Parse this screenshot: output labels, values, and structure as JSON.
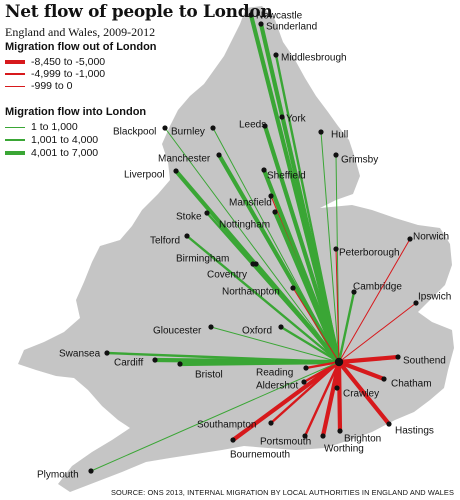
{
  "title": "Net flow of people to London",
  "subtitle": "England and Wales, 2009-2012",
  "legend": {
    "out_heading": "Migration flow out of London",
    "out_items": [
      {
        "label": "-8,450 to -5,000",
        "color": "#d7191c",
        "level": 3
      },
      {
        "label": "-4,999 to -1,000",
        "color": "#d7191c",
        "level": 2
      },
      {
        "label": "-999 to 0",
        "color": "#d7191c",
        "level": 1
      }
    ],
    "in_heading": "Migration flow into London",
    "in_items": [
      {
        "label": "1 to 1,000",
        "color": "#3aa635",
        "level": 1
      },
      {
        "label": "1,001 to 4,000",
        "color": "#3aa635",
        "level": 2
      },
      {
        "label": "4,001 to 7,000",
        "color": "#3aa635",
        "level": 3
      }
    ]
  },
  "source": "SOURCE: ONS 2013, INTERNAL MIGRATION BY LOCAL AUTHORITIES IN ENGLAND AND WALES",
  "colors": {
    "land": "#c5c5c5",
    "outflow": "#d7191c",
    "inflow": "#3aa635",
    "city_dot": "#111111"
  },
  "hub": "London",
  "flows": [
    {
      "city": "Newcastle",
      "direction": "in",
      "level": 3
    },
    {
      "city": "Sunderland",
      "direction": "in",
      "level": 3
    },
    {
      "city": "Middlesbrough",
      "direction": "in",
      "level": 2
    },
    {
      "city": "York",
      "direction": "in",
      "level": 2
    },
    {
      "city": "Leeds",
      "direction": "in",
      "level": 3
    },
    {
      "city": "Hull",
      "direction": "in",
      "level": 1
    },
    {
      "city": "Blackpool",
      "direction": "in",
      "level": 1
    },
    {
      "city": "Burnley",
      "direction": "in",
      "level": 1
    },
    {
      "city": "Grimsby",
      "direction": "in",
      "level": 1
    },
    {
      "city": "Manchester",
      "direction": "in",
      "level": 3
    },
    {
      "city": "Sheffield",
      "direction": "in",
      "level": 3
    },
    {
      "city": "Liverpool",
      "direction": "in",
      "level": 3
    },
    {
      "city": "Mansfield",
      "direction": "out",
      "level": 1
    },
    {
      "city": "Stoke",
      "direction": "in",
      "level": 2
    },
    {
      "city": "Nottingham",
      "direction": "in",
      "level": 3
    },
    {
      "city": "Telford",
      "direction": "in",
      "level": 2
    },
    {
      "city": "Peterborough",
      "direction": "out",
      "level": 1
    },
    {
      "city": "Norwich",
      "direction": "out",
      "level": 1
    },
    {
      "city": "Birmingham",
      "direction": "in",
      "level": 3
    },
    {
      "city": "Coventry",
      "direction": "in",
      "level": 2
    },
    {
      "city": "Cambridge",
      "direction": "in",
      "level": 2
    },
    {
      "city": "Northampton",
      "direction": "out",
      "level": 1
    },
    {
      "city": "Ipswich",
      "direction": "out",
      "level": 1
    },
    {
      "city": "Gloucester",
      "direction": "in",
      "level": 1
    },
    {
      "city": "Oxford",
      "direction": "in",
      "level": 2
    },
    {
      "city": "Swansea",
      "direction": "in",
      "level": 2
    },
    {
      "city": "Cardiff",
      "direction": "in",
      "level": 3
    },
    {
      "city": "Bristol",
      "direction": "in",
      "level": 3
    },
    {
      "city": "Reading",
      "direction": "out",
      "level": 2
    },
    {
      "city": "Southend",
      "direction": "out",
      "level": 3
    },
    {
      "city": "Aldershot",
      "direction": "out",
      "level": 2
    },
    {
      "city": "Chatham",
      "direction": "out",
      "level": 3
    },
    {
      "city": "Crawley",
      "direction": "out",
      "level": 3
    },
    {
      "city": "Southampton",
      "direction": "out",
      "level": 2
    },
    {
      "city": "Hastings",
      "direction": "out",
      "level": 3
    },
    {
      "city": "Brighton",
      "direction": "out",
      "level": 3
    },
    {
      "city": "Portsmouth",
      "direction": "out",
      "level": 2
    },
    {
      "city": "Worthing",
      "direction": "out",
      "level": 3
    },
    {
      "city": "Bournemouth",
      "direction": "out",
      "level": 3
    },
    {
      "city": "Plymouth",
      "direction": "in",
      "level": 1
    }
  ]
}
